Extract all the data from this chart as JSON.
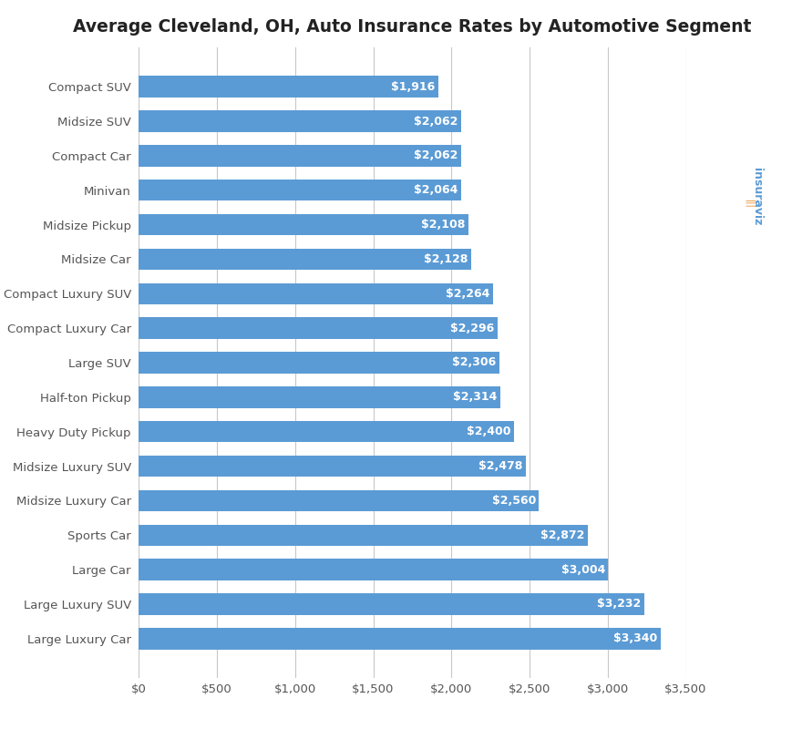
{
  "title": "Average Cleveland, OH, Auto Insurance Rates by Automotive Segment",
  "categories": [
    "Compact SUV",
    "Midsize SUV",
    "Compact Car",
    "Minivan",
    "Midsize Pickup",
    "Midsize Car",
    "Compact Luxury SUV",
    "Compact Luxury Car",
    "Large SUV",
    "Half-ton Pickup",
    "Heavy Duty Pickup",
    "Midsize Luxury SUV",
    "Midsize Luxury Car",
    "Sports Car",
    "Large Car",
    "Large Luxury SUV",
    "Large Luxury Car"
  ],
  "values": [
    1916,
    2062,
    2062,
    2064,
    2108,
    2128,
    2264,
    2296,
    2306,
    2314,
    2400,
    2478,
    2560,
    2872,
    3004,
    3232,
    3340
  ],
  "bar_color": "#5B9BD5",
  "label_color": "#FFFFFF",
  "background_color": "#FFFFFF",
  "grid_color": "#C8C8C8",
  "title_color": "#222222",
  "tick_color": "#555555",
  "xlim": [
    0,
    3500
  ],
  "xticks": [
    0,
    500,
    1000,
    1500,
    2000,
    2500,
    3000,
    3500
  ],
  "title_fontsize": 13.5,
  "ylabel_fontsize": 9.5,
  "tick_fontsize": 9.5,
  "bar_label_fontsize": 9.0,
  "bar_height": 0.62
}
